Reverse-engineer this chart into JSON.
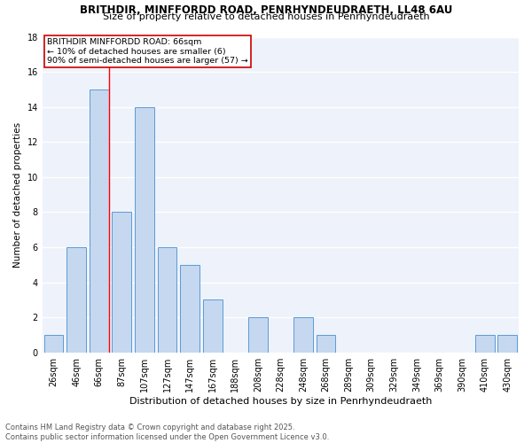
{
  "title1": "BRITHDIR, MINFFORDD ROAD, PENRHYNDEUDRAETH, LL48 6AU",
  "title2": "Size of property relative to detached houses in Penrhyndeudraeth",
  "xlabel": "Distribution of detached houses by size in Penrhyndeudraeth",
  "ylabel": "Number of detached properties",
  "categories": [
    "26sqm",
    "46sqm",
    "66sqm",
    "87sqm",
    "107sqm",
    "127sqm",
    "147sqm",
    "167sqm",
    "188sqm",
    "208sqm",
    "228sqm",
    "248sqm",
    "268sqm",
    "289sqm",
    "309sqm",
    "329sqm",
    "349sqm",
    "369sqm",
    "390sqm",
    "410sqm",
    "430sqm"
  ],
  "values": [
    1,
    6,
    15,
    8,
    14,
    6,
    5,
    3,
    0,
    2,
    0,
    2,
    1,
    0,
    0,
    0,
    0,
    0,
    0,
    1,
    1
  ],
  "bar_color": "#c5d8f0",
  "bar_edgecolor": "#5b9bd5",
  "redline_index": 2,
  "annotation_text": "BRITHDIR MINFFORDD ROAD: 66sqm\n← 10% of detached houses are smaller (6)\n90% of semi-detached houses are larger (57) →",
  "annotation_box_color": "#ffffff",
  "annotation_box_edgecolor": "#cc0000",
  "ylim": [
    0,
    18
  ],
  "yticks": [
    0,
    2,
    4,
    6,
    8,
    10,
    12,
    14,
    16,
    18
  ],
  "background_color": "#eef2fa",
  "grid_color": "#ffffff",
  "footer": "Contains HM Land Registry data © Crown copyright and database right 2025.\nContains public sector information licensed under the Open Government Licence v3.0.",
  "title1_fontsize": 8.5,
  "title2_fontsize": 8,
  "xlabel_fontsize": 8,
  "ylabel_fontsize": 7.5,
  "tick_fontsize": 7,
  "annotation_fontsize": 6.8,
  "footer_fontsize": 6
}
